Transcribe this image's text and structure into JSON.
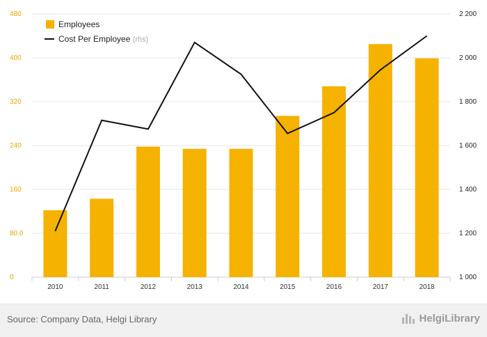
{
  "chart_data": {
    "type": "bar",
    "categories": [
      "2010",
      "2011",
      "2012",
      "2013",
      "2014",
      "2015",
      "2016",
      "2017",
      "2018"
    ],
    "series": [
      {
        "name": "Employees",
        "type": "bar",
        "axis": "left",
        "values": [
          122,
          143,
          238,
          234,
          234,
          294,
          348,
          425,
          399
        ]
      },
      {
        "name": "Cost Per Employee",
        "type": "line",
        "axis": "right",
        "values": [
          1210,
          1715,
          1675,
          2070,
          1925,
          1655,
          1750,
          1945,
          2100
        ]
      }
    ],
    "legend_suffix_rhs": "(rhs)",
    "y_left": {
      "ylim": [
        0,
        480
      ],
      "ticks": [
        0,
        80,
        160,
        240,
        320,
        400,
        480
      ],
      "tick_labels": [
        "0",
        "80.0",
        "160",
        "240",
        "320",
        "400",
        "480"
      ]
    },
    "y_right": {
      "ylim": [
        1000,
        2200
      ],
      "ticks": [
        1000,
        1200,
        1400,
        1600,
        1800,
        2000,
        2200
      ],
      "tick_labels": [
        "1 000",
        "1 200",
        "1 400",
        "1 600",
        "1 800",
        "2 000",
        "2 200"
      ]
    },
    "grid": true,
    "legend_position": "top-left",
    "colors": {
      "bar": "#f6b200",
      "line": "#111111",
      "grid": "#e6e6e6",
      "left_axis_text": "#e8a800"
    }
  },
  "footer": {
    "source": "Source: Company Data, Helgi Library",
    "brand": "HelgiLibrary"
  }
}
